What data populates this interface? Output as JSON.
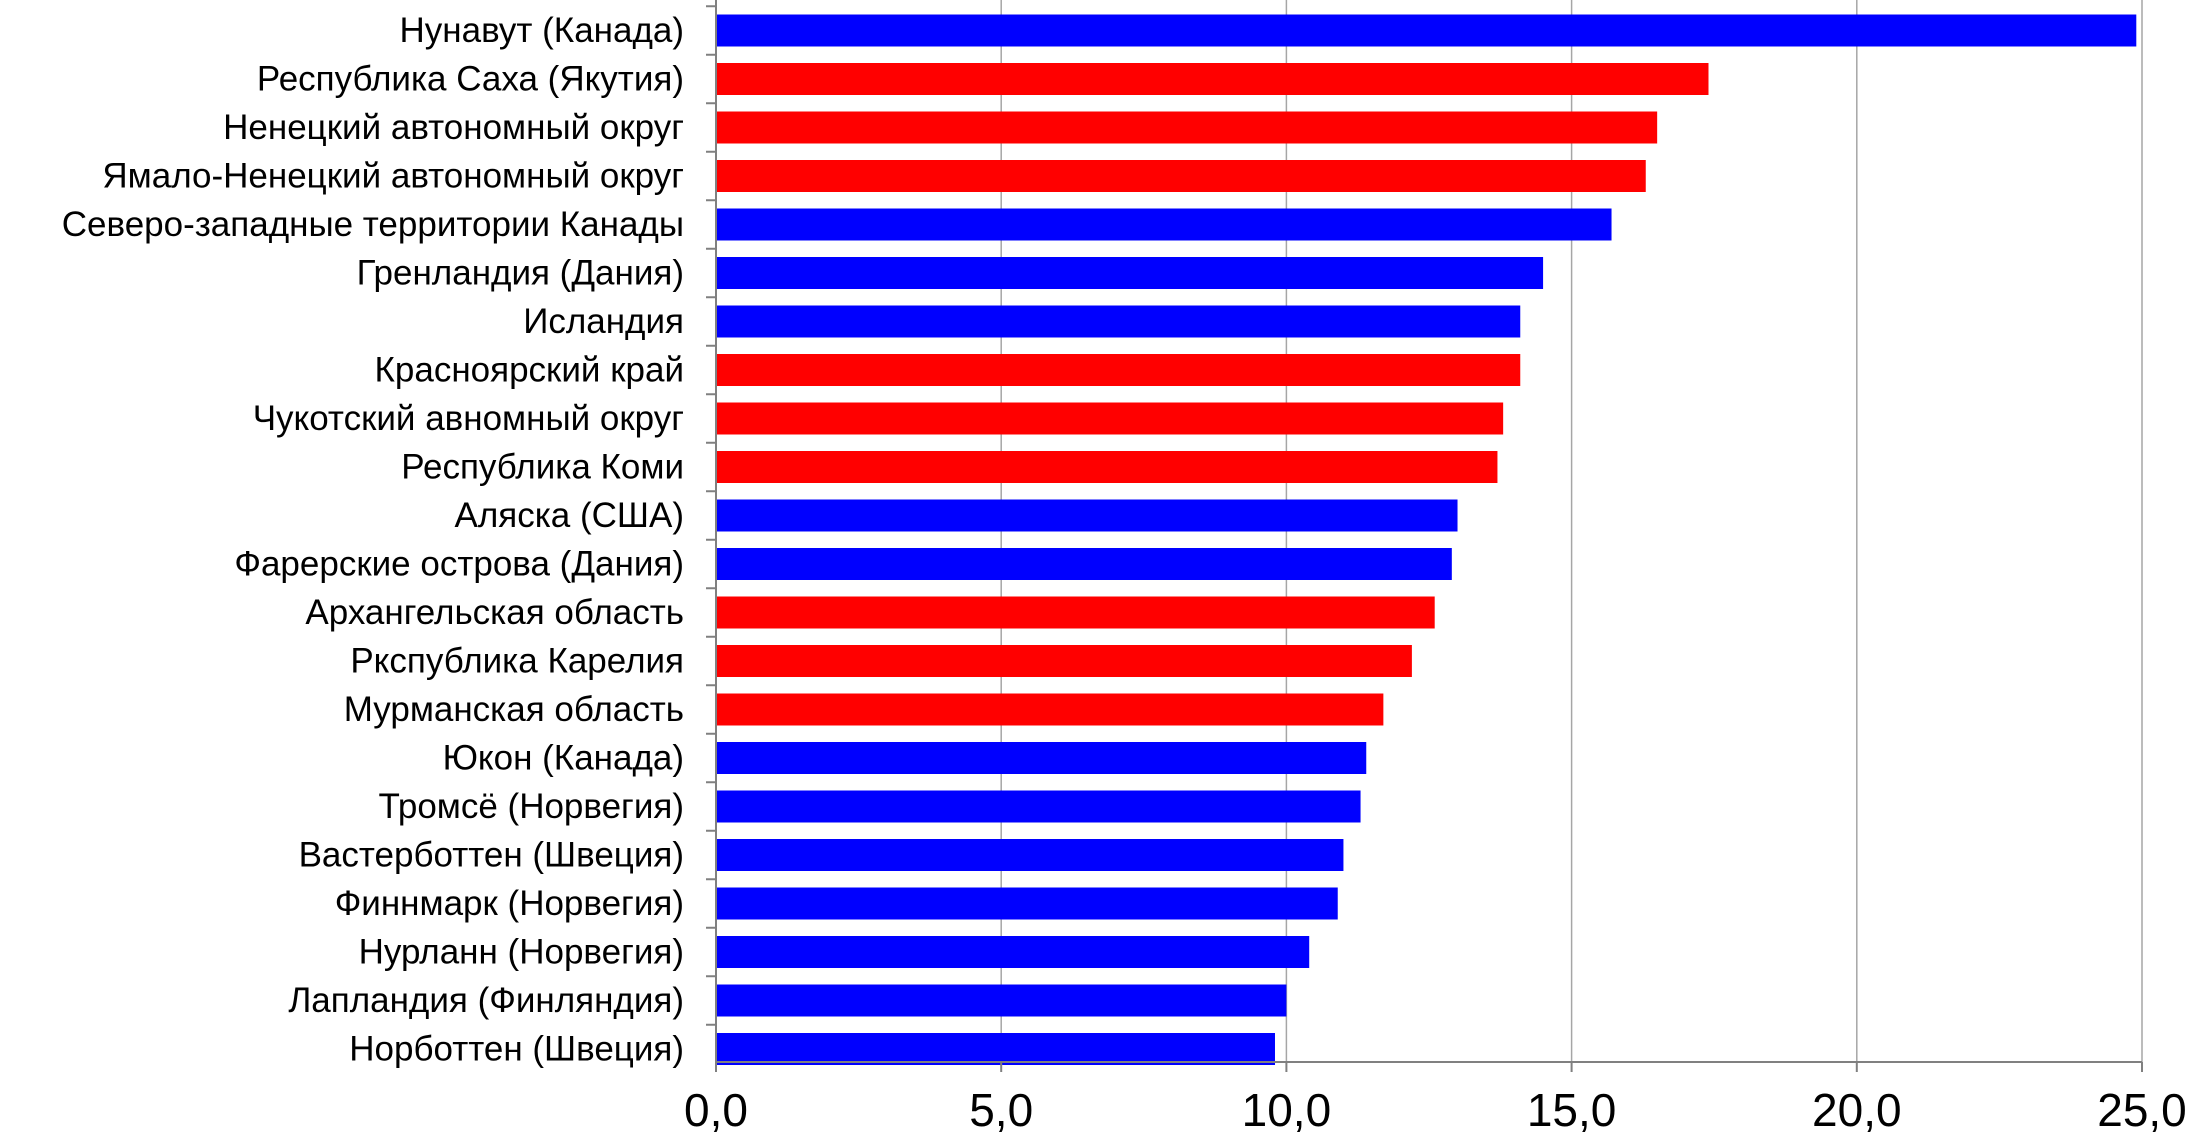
{
  "chart_data": {
    "type": "bar",
    "orientation": "horizontal",
    "categories": [
      "Нунавут (Канада)",
      "Республика Саха (Якутия)",
      "Ненецкий автономный округ",
      "Ямало-Ненецкий автономный округ",
      "Северо-западные территории Канады",
      "Гренландия (Дания)",
      "Исландия",
      "Красноярский край",
      "Чукотский авномный округ",
      "Республика Коми",
      "Аляска (США)",
      "Фарерские острова (Дания)",
      "Архангельская область",
      "Ркспублика Карелия",
      "Мурманская область",
      "Юкон (Канада)",
      "Тромсё (Норвегия)",
      "Вастерботтен (Швеция)",
      "Финнмарк (Норвегия)",
      "Нурланн (Норвегия)",
      "Лапландия (Финляндия)",
      "Норботтен (Швеция)"
    ],
    "values": [
      24.9,
      17.4,
      16.5,
      16.3,
      15.7,
      14.5,
      14.1,
      14.1,
      13.8,
      13.7,
      13.0,
      12.9,
      12.6,
      12.2,
      11.7,
      11.4,
      11.3,
      11.0,
      10.9,
      10.4,
      10.0,
      9.8
    ],
    "colors": [
      "blue",
      "red",
      "red",
      "red",
      "blue",
      "blue",
      "blue",
      "red",
      "red",
      "red",
      "blue",
      "blue",
      "red",
      "red",
      "red",
      "blue",
      "blue",
      "blue",
      "blue",
      "blue",
      "blue",
      "blue"
    ],
    "palette": {
      "blue": "#0000ff",
      "red": "#ff0000"
    },
    "xlim": [
      0,
      25
    ],
    "ticks": [
      0,
      5,
      10,
      15,
      20,
      25
    ],
    "tick_labels": [
      "0,0",
      "5,0",
      "10,0",
      "15,0",
      "20,0",
      "25,0"
    ],
    "grid": "vertical",
    "title": "",
    "xlabel": "",
    "ylabel": ""
  }
}
